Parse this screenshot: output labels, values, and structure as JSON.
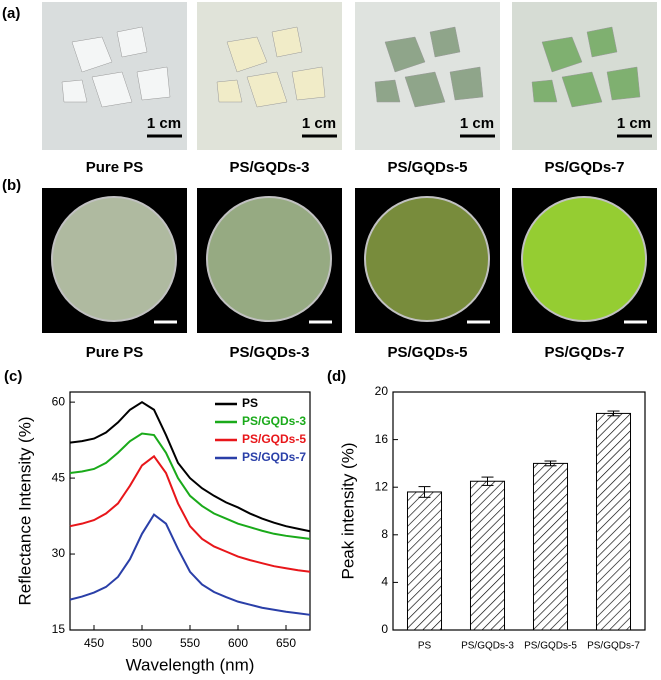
{
  "panel_a": {
    "label": "(a)",
    "scale_bars": [
      "1 cm",
      "1 cm",
      "1 cm",
      "1 cm"
    ],
    "captions": [
      "Pure PS",
      "PS/GQDs-3",
      "PS/GQDs-5",
      "PS/GQDs-7"
    ]
  },
  "panel_b": {
    "label": "(b)",
    "captions": [
      "Pure PS",
      "PS/GQDs-3",
      "PS/GQDs-5",
      "PS/GQDs-7"
    ]
  },
  "chart_data": [
    {
      "type": "line",
      "label": "(c)",
      "x_label": "Wavelength (nm)",
      "y_label": "Reflectance Intensity (%)",
      "x": [
        425,
        437.5,
        450,
        462.5,
        475,
        487.5,
        500,
        512.5,
        525,
        537.5,
        550,
        562.5,
        575,
        587.5,
        600,
        612.5,
        625,
        637.5,
        650,
        662.5,
        675
      ],
      "series": [
        {
          "name": "PS",
          "color": "#000000",
          "values": [
            52,
            52.3,
            52.8,
            54,
            56,
            58.5,
            60,
            58.5,
            53.5,
            48,
            45,
            43,
            41.5,
            40.2,
            39.2,
            38,
            37,
            36.2,
            35.5,
            35,
            34.5
          ]
        },
        {
          "name": "PS/GQDs-3",
          "color": "#1aaa1a",
          "values": [
            46,
            46.3,
            46.8,
            48,
            50,
            52.3,
            53.8,
            53.5,
            50,
            45,
            41.5,
            39.5,
            38,
            37,
            36,
            35.3,
            34.6,
            34,
            33.6,
            33.3,
            33
          ]
        },
        {
          "name": "PS/GQDs-5",
          "color": "#e8161a",
          "values": [
            35.5,
            36,
            36.7,
            38,
            40,
            43.5,
            47.5,
            49.3,
            46,
            40,
            35.5,
            33,
            31.5,
            30.5,
            29.5,
            28.8,
            28.2,
            27.6,
            27.2,
            26.8,
            26.5
          ]
        },
        {
          "name": "PS/GQDs-7",
          "color": "#2a3fa8",
          "values": [
            21,
            21.6,
            22.4,
            23.5,
            25.5,
            29,
            34,
            37.8,
            36,
            31,
            26.5,
            24,
            22.5,
            21.5,
            20.6,
            20,
            19.4,
            19,
            18.6,
            18.3,
            18
          ]
        }
      ],
      "xlim": [
        425,
        675
      ],
      "xticks": [
        450,
        500,
        550,
        600,
        650
      ],
      "ylim": [
        15,
        62
      ],
      "yticks": [
        15,
        30,
        45,
        60
      ],
      "legend": "top-right"
    },
    {
      "type": "bar",
      "label": "(d)",
      "y_label": "Peak intensity (%)",
      "categories": [
        "PS",
        "PS/GQDs-3",
        "PS/GQDs-5",
        "PS/GQDs-7"
      ],
      "values": [
        11.6,
        12.5,
        14.0,
        18.2
      ],
      "errors": [
        0.45,
        0.35,
        0.2,
        0.2
      ],
      "ylim": [
        0,
        20
      ],
      "yticks": [
        0,
        4,
        8,
        12,
        16,
        20
      ],
      "color": "#000000"
    }
  ]
}
